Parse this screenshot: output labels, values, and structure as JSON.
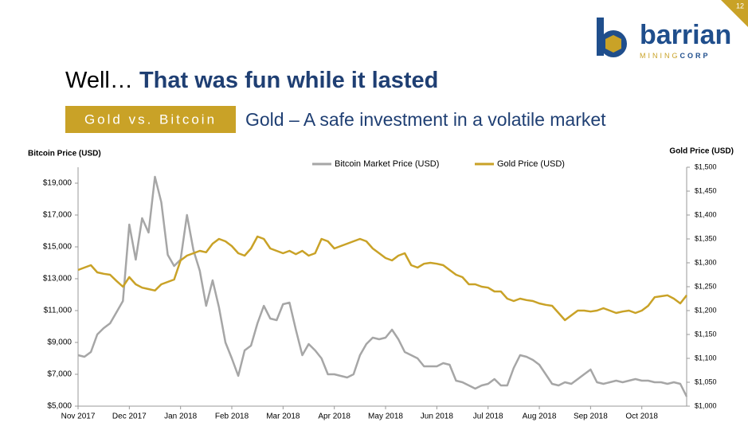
{
  "page_number": "12",
  "logo": {
    "name": "barrian",
    "tag_gold": "MINING",
    "tag_blue": "CORP"
  },
  "title": {
    "lead": "Well…",
    "emphasis": "That was fun while it lasted"
  },
  "badge": "Gold vs. Bitcoin",
  "subtitle": "Gold – A safe investment in a volatile market",
  "chart_data": {
    "type": "line",
    "y_label": "Bitcoin Price (USD)",
    "y2_label": "Gold Price (USD)",
    "categories": [
      "Nov 2017",
      null,
      null,
      null,
      null,
      null,
      null,
      null,
      "Dec 2017",
      null,
      null,
      null,
      null,
      null,
      null,
      null,
      "Jan 2018",
      null,
      null,
      null,
      null,
      null,
      null,
      null,
      "Feb 2018",
      null,
      null,
      null,
      null,
      null,
      null,
      null,
      "Mar 2018",
      null,
      null,
      null,
      null,
      null,
      null,
      null,
      "Apr 2018",
      null,
      null,
      null,
      null,
      null,
      null,
      null,
      "May 2018",
      null,
      null,
      null,
      null,
      null,
      null,
      null,
      "Jun 2018",
      null,
      null,
      null,
      null,
      null,
      null,
      null,
      "Jul 2018",
      null,
      null,
      null,
      null,
      null,
      null,
      null,
      "Aug 2018",
      null,
      null,
      null,
      null,
      null,
      null,
      null,
      "Sep 2018",
      null,
      null,
      null,
      null,
      null,
      null,
      null,
      "Oct 2018",
      null,
      null,
      null,
      null,
      null,
      null,
      null
    ],
    "series": [
      {
        "name": "Bitcoin Market Price (USD)",
        "color": "#a6a6a6",
        "axis": "y",
        "values": [
          8200,
          8100,
          8400,
          9500,
          9900,
          10200,
          10900,
          11600,
          16400,
          14200,
          16800,
          15900,
          19400,
          17800,
          14500,
          13800,
          14200,
          17000,
          14800,
          13500,
          11300,
          12900,
          11200,
          9000,
          8000,
          6900,
          8500,
          8800,
          10200,
          11300,
          10500,
          10400,
          11400,
          11500,
          9800,
          8200,
          8900,
          8500,
          8000,
          7000,
          7000,
          6900,
          6800,
          7000,
          8200,
          8900,
          9300,
          9200,
          9300,
          9800,
          9200,
          8400,
          8200,
          8000,
          7500,
          7500,
          7500,
          7700,
          7600,
          6600,
          6500,
          6300,
          6100,
          6300,
          6400,
          6700,
          6300,
          6300,
          7400,
          8200,
          8100,
          7900,
          7600,
          7000,
          6400,
          6300,
          6500,
          6400,
          6700,
          7000,
          7300,
          6500,
          6400,
          6500,
          6600,
          6500,
          6600,
          6700,
          6600,
          6600,
          6500,
          6500,
          6400,
          6500,
          6400,
          5600
        ]
      },
      {
        "name": "Gold Price (USD)",
        "color": "#c9a227",
        "axis": "y2",
        "values": [
          1285,
          1290,
          1295,
          1280,
          1277,
          1275,
          1262,
          1250,
          1270,
          1255,
          1248,
          1245,
          1242,
          1255,
          1260,
          1265,
          1305,
          1315,
          1320,
          1325,
          1322,
          1340,
          1350,
          1345,
          1335,
          1320,
          1315,
          1330,
          1355,
          1350,
          1330,
          1325,
          1320,
          1325,
          1318,
          1325,
          1315,
          1320,
          1350,
          1345,
          1330,
          1335,
          1340,
          1345,
          1350,
          1345,
          1330,
          1320,
          1310,
          1305,
          1315,
          1320,
          1295,
          1290,
          1298,
          1300,
          1298,
          1295,
          1285,
          1275,
          1270,
          1255,
          1255,
          1250,
          1248,
          1240,
          1240,
          1225,
          1220,
          1225,
          1222,
          1220,
          1215,
          1212,
          1210,
          1195,
          1180,
          1190,
          1200,
          1200,
          1198,
          1200,
          1205,
          1200,
          1195,
          1198,
          1200,
          1195,
          1200,
          1210,
          1228,
          1230,
          1232,
          1225,
          1215,
          1232
        ]
      }
    ],
    "ylim": [
      5000,
      20000
    ],
    "yticks": [
      {
        "value": 5000,
        "label": "$5,000"
      },
      {
        "value": 7000,
        "label": "$7,000"
      },
      {
        "value": 9000,
        "label": "$9,000"
      },
      {
        "value": 11000,
        "label": "$11,000"
      },
      {
        "value": 13000,
        "label": "$13,000"
      },
      {
        "value": 15000,
        "label": "$15,000"
      },
      {
        "value": 17000,
        "label": "$17,000"
      },
      {
        "value": 19000,
        "label": "$19,000"
      }
    ],
    "y2lim": [
      1000,
      1500
    ],
    "y2ticks": [
      {
        "value": 1000,
        "label": "$1,000"
      },
      {
        "value": 1050,
        "label": "$1,050"
      },
      {
        "value": 1100,
        "label": "$1,100"
      },
      {
        "value": 1150,
        "label": "$1,150"
      },
      {
        "value": 1200,
        "label": "$1,200"
      },
      {
        "value": 1250,
        "label": "$1,250"
      },
      {
        "value": 1300,
        "label": "$1,300"
      },
      {
        "value": 1350,
        "label": "$1,350"
      },
      {
        "value": 1400,
        "label": "$1,400"
      },
      {
        "value": 1450,
        "label": "$1,450"
      },
      {
        "value": 1500,
        "label": "$1,500"
      }
    ],
    "grid": false,
    "legend": "top"
  }
}
